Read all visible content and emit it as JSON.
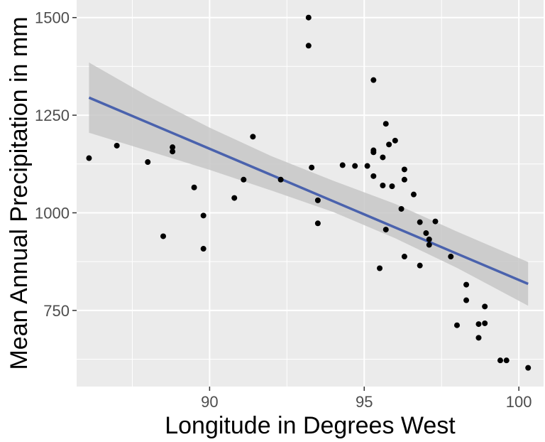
{
  "chart_data": {
    "type": "scatter",
    "xlabel": "Longitude in Degrees West",
    "ylabel": "Mean Annual Precipitation in mm",
    "xlim": [
      85.7,
      100.8
    ],
    "ylim": [
      555,
      1545
    ],
    "x_ticks": [
      90,
      95,
      100
    ],
    "y_ticks": [
      750,
      1000,
      1250,
      1500
    ],
    "grid": true,
    "panel_background": "#ebebeb",
    "point_color": "#000000",
    "fit_color": "#4a62ad",
    "ribbon_color": "#c7c7c7",
    "points": [
      {
        "x": 86.1,
        "y": 1140
      },
      {
        "x": 87.0,
        "y": 1172
      },
      {
        "x": 88.0,
        "y": 1130
      },
      {
        "x": 88.8,
        "y": 1168
      },
      {
        "x": 88.8,
        "y": 1157
      },
      {
        "x": 88.5,
        "y": 940
      },
      {
        "x": 89.5,
        "y": 1065
      },
      {
        "x": 89.8,
        "y": 993
      },
      {
        "x": 89.8,
        "y": 908
      },
      {
        "x": 90.8,
        "y": 1038
      },
      {
        "x": 91.1,
        "y": 1085
      },
      {
        "x": 91.4,
        "y": 1195
      },
      {
        "x": 92.3,
        "y": 1085
      },
      {
        "x": 93.2,
        "y": 1500
      },
      {
        "x": 93.2,
        "y": 1428
      },
      {
        "x": 93.3,
        "y": 1116
      },
      {
        "x": 93.5,
        "y": 1032
      },
      {
        "x": 93.5,
        "y": 973
      },
      {
        "x": 94.3,
        "y": 1122
      },
      {
        "x": 94.7,
        "y": 1120
      },
      {
        "x": 95.1,
        "y": 1120
      },
      {
        "x": 95.3,
        "y": 1340
      },
      {
        "x": 95.3,
        "y": 1160
      },
      {
        "x": 95.3,
        "y": 1155
      },
      {
        "x": 95.3,
        "y": 1094
      },
      {
        "x": 95.6,
        "y": 1142
      },
      {
        "x": 95.6,
        "y": 1070
      },
      {
        "x": 95.5,
        "y": 858
      },
      {
        "x": 95.7,
        "y": 1228
      },
      {
        "x": 95.8,
        "y": 1175
      },
      {
        "x": 95.9,
        "y": 1068
      },
      {
        "x": 96.0,
        "y": 1185
      },
      {
        "x": 95.7,
        "y": 957
      },
      {
        "x": 96.2,
        "y": 1010
      },
      {
        "x": 96.3,
        "y": 1111
      },
      {
        "x": 96.3,
        "y": 1085
      },
      {
        "x": 96.3,
        "y": 888
      },
      {
        "x": 96.6,
        "y": 1047
      },
      {
        "x": 96.8,
        "y": 976
      },
      {
        "x": 96.8,
        "y": 865
      },
      {
        "x": 97.0,
        "y": 948
      },
      {
        "x": 97.1,
        "y": 932
      },
      {
        "x": 97.1,
        "y": 918
      },
      {
        "x": 97.3,
        "y": 978
      },
      {
        "x": 97.8,
        "y": 888
      },
      {
        "x": 98.0,
        "y": 712
      },
      {
        "x": 98.3,
        "y": 816
      },
      {
        "x": 98.3,
        "y": 776
      },
      {
        "x": 98.7,
        "y": 715
      },
      {
        "x": 98.7,
        "y": 680
      },
      {
        "x": 98.9,
        "y": 760
      },
      {
        "x": 98.9,
        "y": 717
      },
      {
        "x": 99.4,
        "y": 622
      },
      {
        "x": 99.6,
        "y": 622
      },
      {
        "x": 100.3,
        "y": 603
      }
    ],
    "fit": {
      "type": "linear",
      "x": [
        86.1,
        100.3
      ],
      "y": [
        1295,
        818
      ],
      "ci_upper": [
        1385,
        874
      ],
      "ci_lower": [
        1205,
        762
      ],
      "ci_x": [
        86.1,
        88,
        90,
        92,
        94,
        96,
        98,
        100.3
      ],
      "ci_upper_pts": [
        1385,
        1299,
        1218,
        1145,
        1082,
        1023,
        952,
        874
      ],
      "ci_lower_pts": [
        1205,
        1159,
        1110,
        1057,
        1002,
        935,
        859,
        762
      ]
    }
  }
}
